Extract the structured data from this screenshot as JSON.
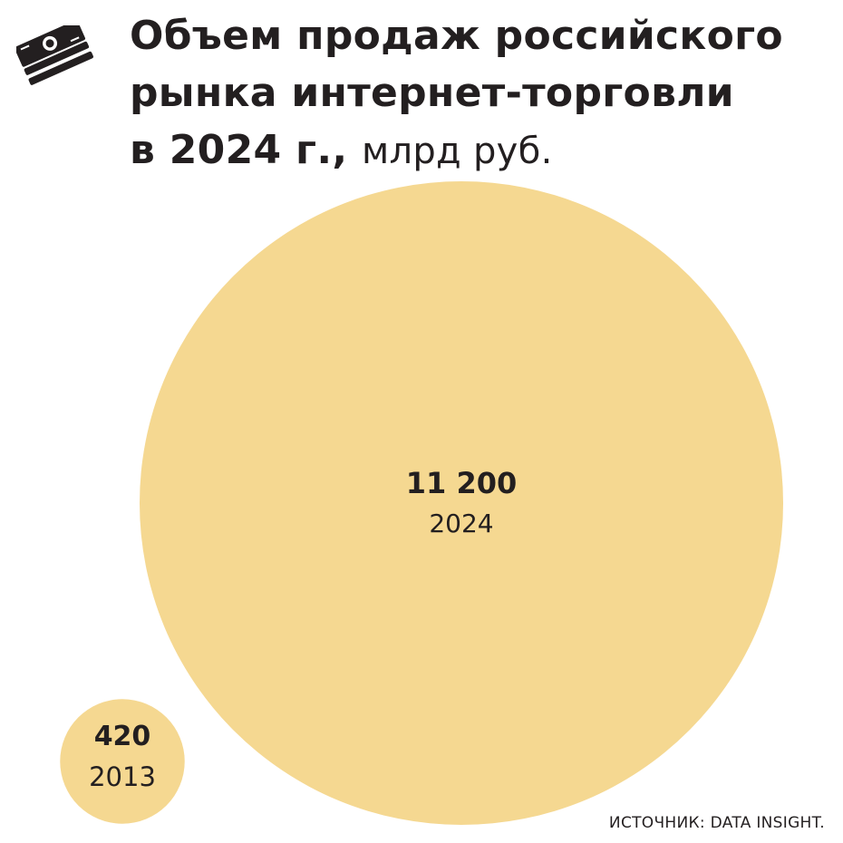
{
  "title": {
    "line1": "Объем продаж российского",
    "line2": "рынка интернет-торговли",
    "line3": "в 2024 г.,",
    "unit": "млрд руб."
  },
  "logo_icon": "banknotes-icon",
  "colors": {
    "bubble": "#f5d891",
    "text": "#231f20"
  },
  "chart_data": {
    "type": "bubble",
    "unit": "млрд руб.",
    "series": [
      {
        "value_label": "11 200",
        "value": 11200,
        "category_label": "2024"
      },
      {
        "value_label": "420",
        "value": 420,
        "category_label": "2013"
      }
    ]
  },
  "source": "ИСТОЧНИК: DATA INSIGHT."
}
